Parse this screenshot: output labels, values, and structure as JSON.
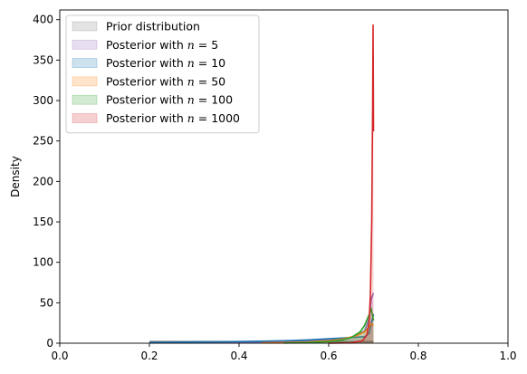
{
  "chart_data": {
    "type": "area",
    "ylabel": "Density",
    "xlim": [
      0,
      1
    ],
    "ylim": [
      0,
      412
    ],
    "xticks": [
      0.0,
      0.2,
      0.4,
      0.6,
      0.8,
      1.0
    ],
    "xtick_labels": [
      "0.0",
      "0.2",
      "0.4",
      "0.6",
      "0.8",
      "1.0"
    ],
    "yticks": [
      0,
      50,
      100,
      150,
      200,
      250,
      300,
      350,
      400
    ],
    "ytick_labels": [
      "0",
      "50",
      "100",
      "150",
      "200",
      "250",
      "300",
      "350",
      "400"
    ],
    "grid": false,
    "legend_position": "top-left",
    "series": [
      {
        "name": "Prior distribution",
        "color": "#7f7f7f",
        "x": [
          0.2,
          0.25,
          0.3,
          0.35,
          0.4,
          0.45,
          0.5,
          0.55,
          0.6,
          0.65,
          0.69,
          0.7
        ],
        "y": [
          2.0,
          2.0,
          2.0,
          2.0,
          2.0,
          2.0,
          2.0,
          2.0,
          2.0,
          2.0,
          2.0,
          2.0
        ]
      },
      {
        "name": "Posterior with $n = 5$",
        "color": "#9467bd",
        "x": [
          0.2,
          0.3,
          0.4,
          0.5,
          0.6,
          0.65,
          0.68,
          0.69,
          0.695,
          0.7
        ],
        "y": [
          0.5,
          0.8,
          1.2,
          2.0,
          4.0,
          7.0,
          15.0,
          30.0,
          55.0,
          62.0
        ]
      },
      {
        "name": "Posterior with $n = 10$",
        "color": "#1f77b4",
        "x": [
          0.2,
          0.3,
          0.4,
          0.5,
          0.55,
          0.6,
          0.65,
          0.68,
          0.69,
          0.7
        ],
        "y": [
          1.0,
          1.5,
          2.0,
          3.0,
          4.0,
          5.5,
          7.0,
          8.0,
          12.0,
          36.0
        ]
      },
      {
        "name": "Posterior with $n = 50$",
        "color": "#ff7f0e",
        "x": [
          0.45,
          0.5,
          0.55,
          0.6,
          0.63,
          0.66,
          0.68,
          0.69,
          0.695,
          0.7
        ],
        "y": [
          0.3,
          0.8,
          1.5,
          3.0,
          5.0,
          9.0,
          14.0,
          20.0,
          24.0,
          22.0
        ]
      },
      {
        "name": "Posterior with $n = 100$",
        "color": "#2ca02c",
        "x": [
          0.5,
          0.55,
          0.6,
          0.63,
          0.65,
          0.67,
          0.68,
          0.69,
          0.695,
          0.7
        ],
        "y": [
          0.2,
          0.8,
          2.0,
          4.0,
          7.0,
          14.0,
          22.0,
          35.0,
          42.0,
          28.0
        ]
      },
      {
        "name": "Posterior with $n = 1000$",
        "color": "#d62728",
        "x": [
          0.6,
          0.65,
          0.675,
          0.685,
          0.69,
          0.693,
          0.696,
          0.698,
          0.699,
          0.7
        ],
        "y": [
          0.0,
          0.5,
          3.0,
          10.0,
          25.0,
          60.0,
          150.0,
          290.0,
          394.0,
          262.0
        ]
      }
    ]
  }
}
